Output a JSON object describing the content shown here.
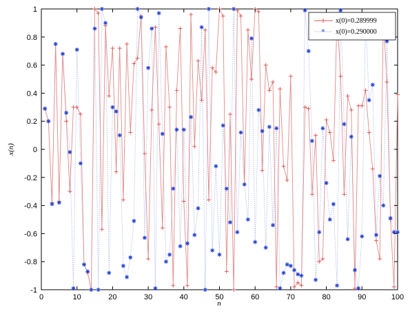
{
  "chart_data": {
    "type": "line",
    "xlabel": "n",
    "ylabel": "x(n)",
    "xlim": [
      0,
      100
    ],
    "ylim": [
      -1,
      1
    ],
    "x_ticks": [
      0,
      10,
      20,
      30,
      40,
      50,
      60,
      70,
      80,
      90,
      100
    ],
    "y_ticks": [
      1,
      0.8,
      0.6,
      0.4,
      0.2,
      0,
      -0.2,
      -0.4,
      -0.6,
      -0.8,
      -1
    ],
    "y_tick_labels": [
      "1",
      "0.8",
      "0.6",
      "0.4",
      "0.2",
      "0",
      "-0.2",
      "-0.4",
      "-0.6",
      "-0.8",
      "-1"
    ],
    "grid": false,
    "legend_position": "top-right",
    "x": [
      1,
      2,
      3,
      4,
      5,
      6,
      7,
      8,
      9,
      10,
      11,
      12,
      13,
      14,
      15,
      16,
      17,
      18,
      19,
      20,
      21,
      22,
      23,
      24,
      25,
      26,
      27,
      28,
      29,
      30,
      31,
      32,
      33,
      34,
      35,
      36,
      37,
      38,
      39,
      40,
      41,
      42,
      43,
      44,
      45,
      46,
      47,
      48,
      49,
      50,
      51,
      52,
      53,
      54,
      55,
      56,
      57,
      58,
      59,
      60,
      61,
      62,
      63,
      64,
      65,
      66,
      67,
      68,
      69,
      70,
      71,
      72,
      73,
      74,
      75,
      76,
      77,
      78,
      79,
      80,
      81,
      82,
      83,
      84,
      85,
      86,
      87,
      88,
      89,
      90,
      91,
      92,
      93,
      94,
      95,
      96,
      97,
      98,
      99,
      100
    ],
    "series": [
      {
        "name": "x(0)=0.289999",
        "color": "#d9534f",
        "marker": "+",
        "values": [
          0.29,
          0.2,
          -0.38,
          0.75,
          -0.37,
          0.68,
          0.2,
          -0.3,
          0.3,
          0.3,
          0.25,
          -0.82,
          -0.88,
          -1.0,
          1.0,
          0.97,
          -0.57,
          0.88,
          0.38,
          0.72,
          -0.16,
          0.72,
          -0.36,
          0.75,
          0.12,
          0.61,
          0.65,
          0.95,
          -0.03,
          -0.78,
          0.28,
          0.87,
          0.18,
          -0.56,
          0.73,
          0.3,
          -0.97,
          0.42,
          0.86,
          -0.37,
          -0.97,
          0.96,
          0.02,
          0.63,
          0.35,
          0.85,
          -0.36,
          0.58,
          0.55,
          1.0,
          0.95,
          -0.87,
          0.25,
          -1.0,
          0.99,
          0.95,
          -0.25,
          0.85,
          0.5,
          1.0,
          0.98,
          -0.15,
          0.6,
          0.42,
          0.48,
          -0.98,
          0.43,
          -0.12,
          -0.22,
          0.52,
          -0.98,
          -0.95,
          -0.97,
          0.3,
          0.29,
          -0.32,
          0.1,
          -0.8,
          -0.78,
          0.21,
          0.12,
          -0.08,
          0.95,
          0.52,
          -0.32,
          0.38,
          0.28,
          -0.99,
          0.31,
          0.31,
          0.42,
          0.12,
          -0.14,
          -0.65,
          -0.78,
          0.93,
          0.48,
          -0.5,
          -0.98,
          0.39
        ]
      },
      {
        "name": "x(0)=0.290000",
        "color": "#1f3fd1",
        "marker": "*",
        "values": [
          0.29,
          0.2,
          -0.39,
          0.75,
          -0.38,
          0.68,
          0.26,
          -0.02,
          -0.99,
          0.71,
          -0.1,
          -0.82,
          -0.87,
          -1.0,
          0.86,
          -1.0,
          1.0,
          0.9,
          -0.88,
          0.3,
          0.27,
          0.1,
          -0.83,
          -0.91,
          -0.77,
          -0.51,
          1.0,
          0.94,
          -0.63,
          0.58,
          0.86,
          -0.99,
          0.97,
          0.11,
          -0.8,
          -0.75,
          -0.28,
          0.14,
          -0.69,
          0.14,
          -0.67,
          0.23,
          -0.61,
          -0.42,
          0.87,
          -1.0,
          1.0,
          -0.72,
          -0.12,
          -0.75,
          0.17,
          -0.28,
          -0.52,
          1.0,
          -0.59,
          0.12,
          -0.25,
          -0.5,
          0.79,
          -0.66,
          0.28,
          0.13,
          -0.7,
          0.16,
          -0.54,
          0.15,
          -0.99,
          -0.88,
          -0.82,
          -0.83,
          -0.86,
          -0.89,
          -0.9,
          0.99,
          0.7,
          0.06,
          -0.93,
          -0.59,
          0.15,
          -0.24,
          -0.5,
          -0.39,
          -0.97,
          0.99,
          0.18,
          -0.64,
          0.09,
          -0.86,
          -0.99,
          -0.62,
          0.94,
          0.35,
          0.46,
          -0.61,
          -0.19,
          -0.4,
          0.77,
          -0.49,
          -0.59,
          -0.59
        ]
      }
    ]
  }
}
